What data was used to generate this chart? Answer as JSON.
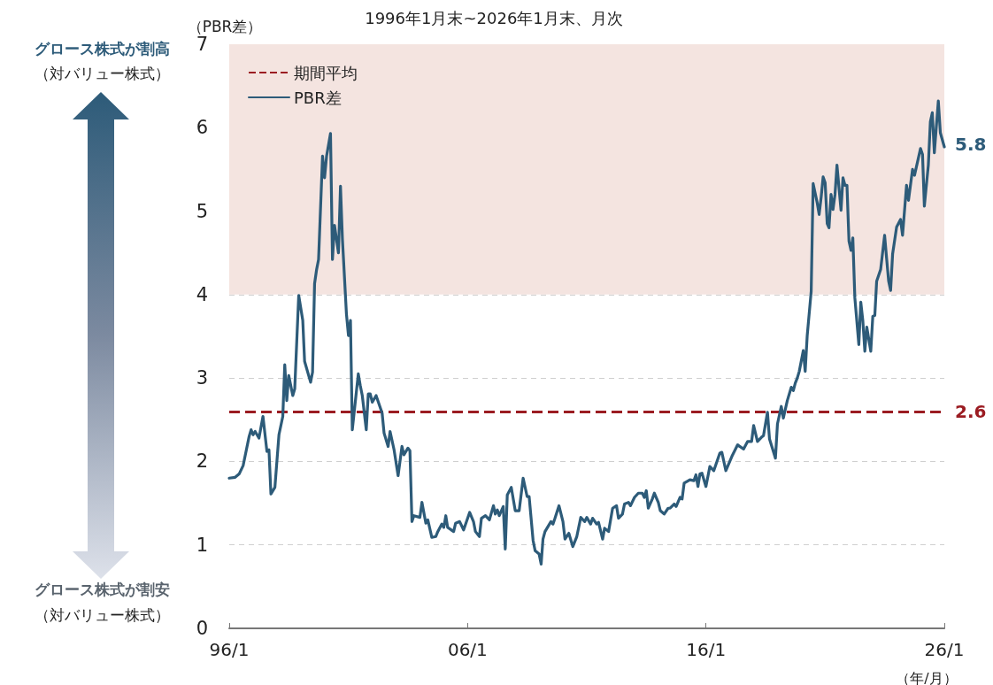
{
  "chart_data": {
    "type": "line",
    "title": "1996年1月末~2026年1月末、月次",
    "ylabel": "（PBR差）",
    "xlabel": "（年/月）",
    "annotations": [
      "グロース株式が割高",
      "（対バリュー株式）",
      "グロース株式が割安",
      "（対バリュー株式）",
      {
        "text": "5.8",
        "x": "2026-01",
        "y": 5.8
      },
      {
        "text": "2.6",
        "x": "2026-01",
        "y": 2.6
      }
    ],
    "xlim": [
      "1996-01",
      "2026-01"
    ],
    "xticks": [
      {
        "value": "1996-01",
        "label": "96/1"
      },
      {
        "value": "2006-01",
        "label": "06/1"
      },
      {
        "value": "2016-01",
        "label": "16/1"
      },
      {
        "value": "2026-01",
        "label": "26/1"
      }
    ],
    "ylim": [
      0,
      7
    ],
    "yticks": [
      0,
      1,
      2,
      3,
      4,
      5,
      6,
      7
    ],
    "grid": "y",
    "legend": "top left",
    "marker": "none",
    "line_style": "solid",
    "ref_lines": [
      {
        "axis": "y",
        "value": 2.6,
        "label": "期間平均",
        "color": "#9b1c22",
        "line_style": "dashed"
      }
    ],
    "bands": [
      {
        "axis": "y",
        "from": 4,
        "to": 7,
        "color": "#f4e4e0"
      }
    ],
    "series": [
      {
        "name": "PBR差",
        "color": "#2d5b79",
        "x": [
          "1996-01",
          "1996-04",
          "1996-06",
          "1996-08",
          "1996-11",
          "1996-12",
          "1997-01",
          "1997-02",
          "1997-04",
          "1997-06",
          "1997-08",
          "1997-09",
          "1997-10",
          "1997-12",
          "1998-02",
          "1998-04",
          "1998-05",
          "1998-06",
          "1998-07",
          "1998-09",
          "1998-10",
          "1998-11",
          "1998-12",
          "1999-02",
          "1999-03",
          "1999-06",
          "1999-07",
          "1999-08",
          "1999-09",
          "1999-10",
          "1999-12",
          "2000-01",
          "2000-02",
          "2000-04",
          "2000-05",
          "2000-06",
          "2000-08",
          "2000-09",
          "2000-10",
          "2000-12",
          "2001-01",
          "2001-02",
          "2001-03",
          "2001-06",
          "2001-07",
          "2001-08",
          "2001-10",
          "2001-11",
          "2001-12",
          "2002-01",
          "2002-03",
          "2002-06",
          "2002-07",
          "2002-09",
          "2002-10",
          "2002-12",
          "2003-02",
          "2003-04",
          "2003-05",
          "2003-07",
          "2003-08",
          "2003-09",
          "2003-10",
          "2004-01",
          "2004-02",
          "2004-04",
          "2004-05",
          "2004-07",
          "2004-09",
          "2004-10",
          "2004-12",
          "2005-01",
          "2005-02",
          "2005-03",
          "2005-06",
          "2005-07",
          "2005-09",
          "2005-11",
          "2006-02",
          "2006-04",
          "2006-05",
          "2006-07",
          "2006-08",
          "2006-10",
          "2006-12",
          "2007-02",
          "2007-03",
          "2007-04",
          "2007-05",
          "2007-07",
          "2007-08",
          "2007-09",
          "2007-11",
          "2008-01",
          "2008-03",
          "2008-05",
          "2008-07",
          "2008-08",
          "2008-10",
          "2008-11",
          "2009-01",
          "2009-02",
          "2009-03",
          "2009-04",
          "2009-07",
          "2009-08",
          "2009-09",
          "2009-11",
          "2010-01",
          "2010-02",
          "2010-04",
          "2010-06",
          "2010-08",
          "2010-10",
          "2010-12",
          "2011-01",
          "2011-03",
          "2011-04",
          "2011-06",
          "2011-07",
          "2011-09",
          "2011-10",
          "2011-12",
          "2012-02",
          "2012-04",
          "2012-05",
          "2012-07",
          "2012-08",
          "2012-10",
          "2012-11",
          "2013-01",
          "2013-03",
          "2013-05",
          "2013-06",
          "2013-07",
          "2013-08",
          "2013-10",
          "2013-11",
          "2014-01",
          "2014-02",
          "2014-04",
          "2014-06",
          "2014-07",
          "2014-09",
          "2014-10",
          "2014-12",
          "2015-01",
          "2015-02",
          "2015-05",
          "2015-07",
          "2015-08",
          "2015-09",
          "2015-10",
          "2015-11",
          "2016-01",
          "2016-03",
          "2016-05",
          "2016-08",
          "2016-09",
          "2016-11",
          "2017-02",
          "2017-05",
          "2017-06",
          "2017-08",
          "2017-10",
          "2017-12",
          "2018-01",
          "2018-03",
          "2018-05",
          "2018-06",
          "2018-08",
          "2018-09",
          "2018-12",
          "2019-01",
          "2019-03",
          "2019-04",
          "2019-06",
          "2019-08",
          "2019-09",
          "2019-10",
          "2019-11",
          "2019-12",
          "2020-02",
          "2020-03",
          "2020-04",
          "2020-06",
          "2020-07",
          "2020-09",
          "2020-10",
          "2020-11",
          "2020-12",
          "2021-01",
          "2021-02",
          "2021-03",
          "2021-04",
          "2021-05",
          "2021-06",
          "2021-07",
          "2021-09",
          "2021-10",
          "2021-11",
          "2021-12",
          "2022-01",
          "2022-02",
          "2022-03",
          "2022-04",
          "2022-06",
          "2022-07",
          "2022-08",
          "2022-09",
          "2022-10",
          "2022-12",
          "2023-01",
          "2023-02",
          "2023-03",
          "2023-05",
          "2023-07",
          "2023-08",
          "2023-09",
          "2023-10",
          "2023-11",
          "2024-01",
          "2024-03",
          "2024-04",
          "2024-06",
          "2024-07",
          "2024-09",
          "2024-10",
          "2025-01",
          "2025-02",
          "2025-03",
          "2025-05",
          "2025-06",
          "2025-07",
          "2025-08",
          "2025-10",
          "2025-11",
          "2026-01"
        ],
        "values": [
          1.8,
          1.81,
          1.85,
          1.95,
          2.3,
          2.38,
          2.32,
          2.36,
          2.28,
          2.54,
          2.12,
          2.14,
          1.61,
          1.69,
          2.32,
          2.54,
          3.16,
          2.73,
          3.03,
          2.79,
          2.87,
          3.44,
          3.99,
          3.69,
          3.2,
          2.95,
          3.07,
          4.13,
          4.3,
          4.42,
          5.66,
          5.4,
          5.66,
          5.93,
          4.42,
          4.83,
          4.5,
          5.3,
          4.66,
          3.77,
          3.51,
          3.69,
          2.38,
          3.05,
          2.91,
          2.79,
          2.38,
          2.81,
          2.81,
          2.71,
          2.79,
          2.58,
          2.34,
          2.18,
          2.36,
          2.14,
          1.83,
          2.18,
          2.08,
          2.16,
          2.13,
          1.28,
          1.35,
          1.33,
          1.51,
          1.26,
          1.3,
          1.09,
          1.1,
          1.16,
          1.25,
          1.21,
          1.35,
          1.21,
          1.16,
          1.26,
          1.28,
          1.18,
          1.39,
          1.28,
          1.16,
          1.1,
          1.32,
          1.35,
          1.3,
          1.47,
          1.37,
          1.42,
          1.35,
          1.46,
          0.95,
          1.6,
          1.69,
          1.41,
          1.41,
          1.8,
          1.58,
          1.58,
          1.05,
          0.93,
          0.89,
          0.77,
          1.07,
          1.16,
          1.28,
          1.25,
          1.32,
          1.47,
          1.28,
          1.07,
          1.14,
          0.98,
          1.1,
          1.33,
          1.28,
          1.33,
          1.25,
          1.32,
          1.25,
          1.27,
          1.07,
          1.2,
          1.16,
          1.44,
          1.47,
          1.32,
          1.37,
          1.49,
          1.51,
          1.47,
          1.57,
          1.62,
          1.62,
          1.57,
          1.65,
          1.44,
          1.55,
          1.62,
          1.51,
          1.41,
          1.37,
          1.44,
          1.44,
          1.49,
          1.46,
          1.57,
          1.55,
          1.74,
          1.78,
          1.77,
          1.84,
          1.7,
          1.85,
          1.86,
          1.7,
          1.94,
          1.89,
          2.1,
          2.11,
          1.89,
          2.06,
          2.2,
          2.18,
          2.15,
          2.24,
          2.24,
          2.43,
          2.24,
          2.29,
          2.31,
          2.59,
          2.27,
          2.04,
          2.45,
          2.66,
          2.52,
          2.73,
          2.89,
          2.85,
          2.94,
          3.0,
          3.08,
          3.33,
          3.08,
          3.51,
          4.04,
          5.33,
          5.1,
          4.96,
          5.17,
          5.41,
          5.34,
          4.85,
          4.8,
          5.2,
          5.02,
          5.2,
          5.55,
          5.01,
          5.4,
          5.31,
          5.31,
          4.64,
          4.53,
          4.68,
          3.96,
          3.4,
          3.91,
          3.69,
          3.32,
          3.61,
          3.32,
          3.74,
          3.75,
          4.16,
          4.3,
          4.71,
          4.43,
          4.16,
          4.05,
          4.49,
          4.81,
          4.9,
          4.71,
          5.31,
          5.13,
          5.5,
          5.43,
          5.75,
          5.68,
          5.06,
          5.55,
          6.07,
          6.18,
          5.7,
          6.32,
          5.94,
          5.77
        ]
      }
    ]
  }
}
